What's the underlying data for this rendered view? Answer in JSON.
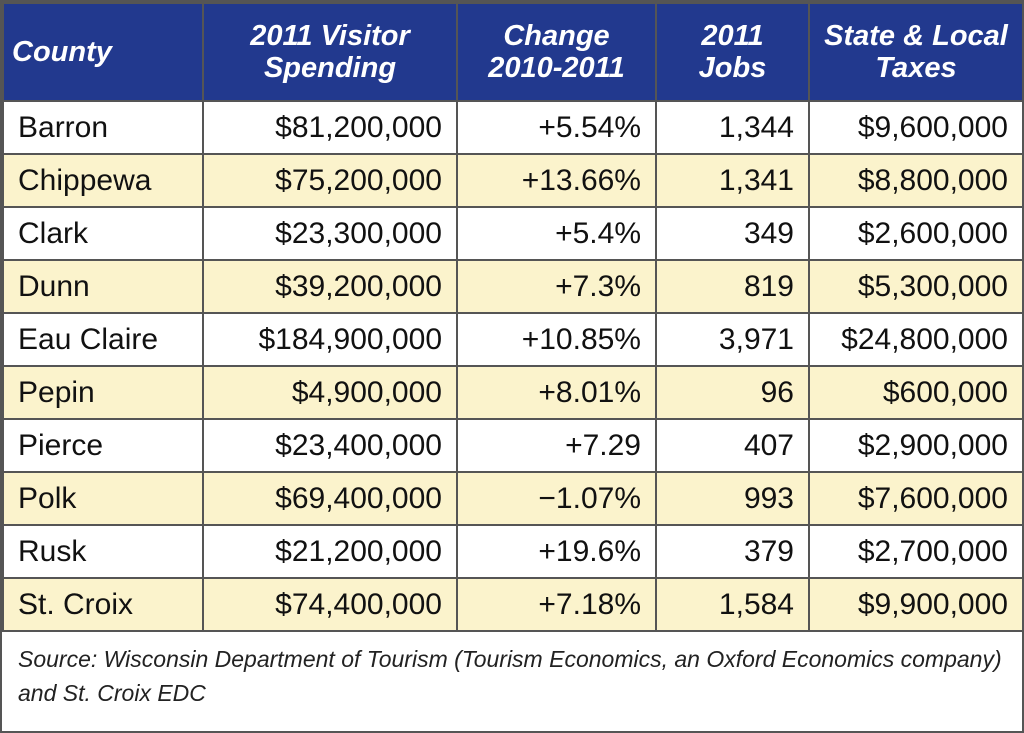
{
  "table": {
    "header": [
      "County",
      "2011 Visitor\nSpending",
      "Change\n2010-2011",
      "2011 Jobs",
      "State & Local\nTaxes"
    ],
    "rows": [
      [
        "Barron",
        "$81,200,000",
        "+5.54%",
        "1,344",
        "$9,600,000"
      ],
      [
        "Chippewa",
        "$75,200,000",
        "+13.66%",
        "1,341",
        "$8,800,000"
      ],
      [
        "Clark",
        "$23,300,000",
        "+5.4%",
        "349",
        "$2,600,000"
      ],
      [
        "Dunn",
        "$39,200,000",
        "+7.3%",
        "819",
        "$5,300,000"
      ],
      [
        "Eau Claire",
        "$184,900,000",
        "+10.85%",
        "3,971",
        "$24,800,000"
      ],
      [
        "Pepin",
        "$4,900,000",
        "+8.01%",
        "96",
        "$600,000"
      ],
      [
        "Pierce",
        "$23,400,000",
        "+7.29",
        "407",
        "$2,900,000"
      ],
      [
        "Polk",
        "$69,400,000",
        "−1.07%",
        "993",
        "$7,600,000"
      ],
      [
        "Rusk",
        "$21,200,000",
        "+19.6%",
        "379",
        "$2,700,000"
      ],
      [
        "St. Croix",
        "$74,400,000",
        "+7.18%",
        "1,584",
        "$9,900,000"
      ]
    ]
  },
  "source": "Source: Wisconsin Department of Tourism (Tourism Economics, an Oxford Economics company) and St. Croix EDC"
}
